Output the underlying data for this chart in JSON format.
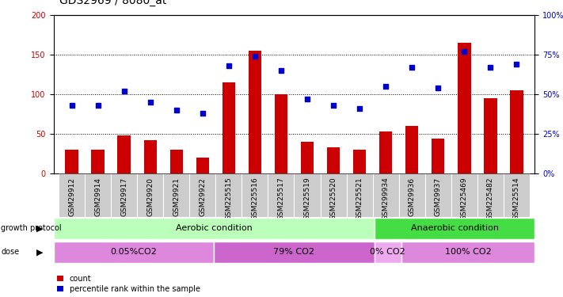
{
  "title": "GDS2969 / 8080_at",
  "samples": [
    "GSM29912",
    "GSM29914",
    "GSM29917",
    "GSM29920",
    "GSM29921",
    "GSM29922",
    "GSM225515",
    "GSM225516",
    "GSM225517",
    "GSM225519",
    "GSM225520",
    "GSM225521",
    "GSM299934",
    "GSM29936",
    "GSM29937",
    "GSM225469",
    "GSM225482",
    "GSM225514"
  ],
  "count_values": [
    30,
    30,
    48,
    42,
    30,
    20,
    115,
    155,
    100,
    40,
    33,
    30,
    53,
    60,
    44,
    165,
    95,
    105
  ],
  "percentile_values": [
    43,
    43,
    52,
    45,
    40,
    38,
    68,
    74,
    65,
    47,
    43,
    41,
    55,
    67,
    54,
    77,
    67,
    69
  ],
  "ylim_left": [
    0,
    200
  ],
  "ylim_right": [
    0,
    100
  ],
  "yticks_left": [
    0,
    50,
    100,
    150,
    200
  ],
  "yticks_right": [
    0,
    25,
    50,
    75,
    100
  ],
  "bar_color": "#cc0000",
  "scatter_color": "#0000cc",
  "growth_protocol_label": "growth protocol",
  "dose_label": "dose",
  "aerobic_label": "Aerobic condition",
  "anaerobic_label": "Anaerobic condition",
  "aerobic_color": "#bbffbb",
  "anaerobic_color": "#44dd44",
  "dose_colors_light": "#dd88dd",
  "dose_colors_dark": "#cc66cc",
  "dose_colors_vlight": "#eeaaee",
  "dose_labels": [
    "0.05%CO2",
    "79% CO2",
    "0% CO2",
    "100% CO2"
  ],
  "dose_sample_counts": [
    6,
    6,
    1,
    5
  ],
  "aerobic_samples_count": 12,
  "anaerobic_samples_count": 6,
  "legend_count_label": "count",
  "legend_percentile_label": "percentile rank within the sample",
  "title_fontsize": 10,
  "tick_fontsize": 7,
  "label_fontsize": 8,
  "sample_fontsize": 6.5
}
